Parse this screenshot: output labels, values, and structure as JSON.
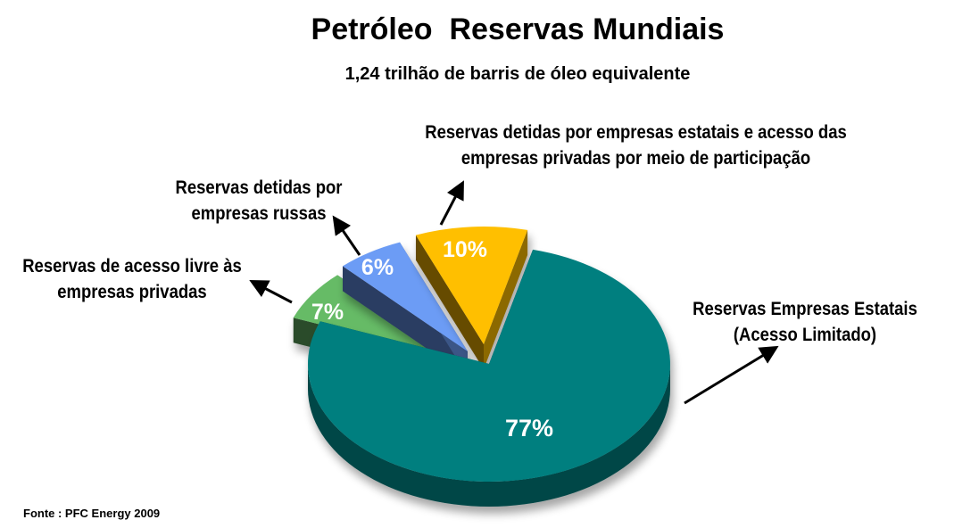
{
  "chart_data": {
    "type": "pie",
    "title": "Petróleo  Reservas Mundiais",
    "subtitle": "1,24 trilhão de barris de óleo equivalente",
    "slices": [
      {
        "label": "Reservas Empresas Estatais (Acesso Limitado)",
        "value": 77,
        "value_label": "77%",
        "color": "#007f7f"
      },
      {
        "label": "Reservas de acesso livre às empresas privadas",
        "value": 7,
        "value_label": "7%",
        "color": "#66bb66"
      },
      {
        "label": "Reservas detidas por empresas russas",
        "value": 6,
        "value_label": "6%",
        "color": "#6c9cf5"
      },
      {
        "label": "Reservas detidas por empresas estatais e acesso das empresas privadas por meio de participação",
        "value": 10,
        "value_label": "10%",
        "color": "#ffbf00"
      }
    ],
    "source": "Fonte : PFC Energy 2009"
  },
  "labels": {
    "estatais_line1": "Reservas Empresas Estatais",
    "estatais_line2": "(Acesso Limitado)",
    "livre_line1": "Reservas de acesso livre às",
    "livre_line2": "empresas privadas",
    "russas_line1": "Reservas detidas por",
    "russas_line2": "empresas russas",
    "participacao_line1": "Reservas detidas por empresas estatais e acesso das",
    "participacao_line2": "empresas privadas por meio de participação"
  }
}
